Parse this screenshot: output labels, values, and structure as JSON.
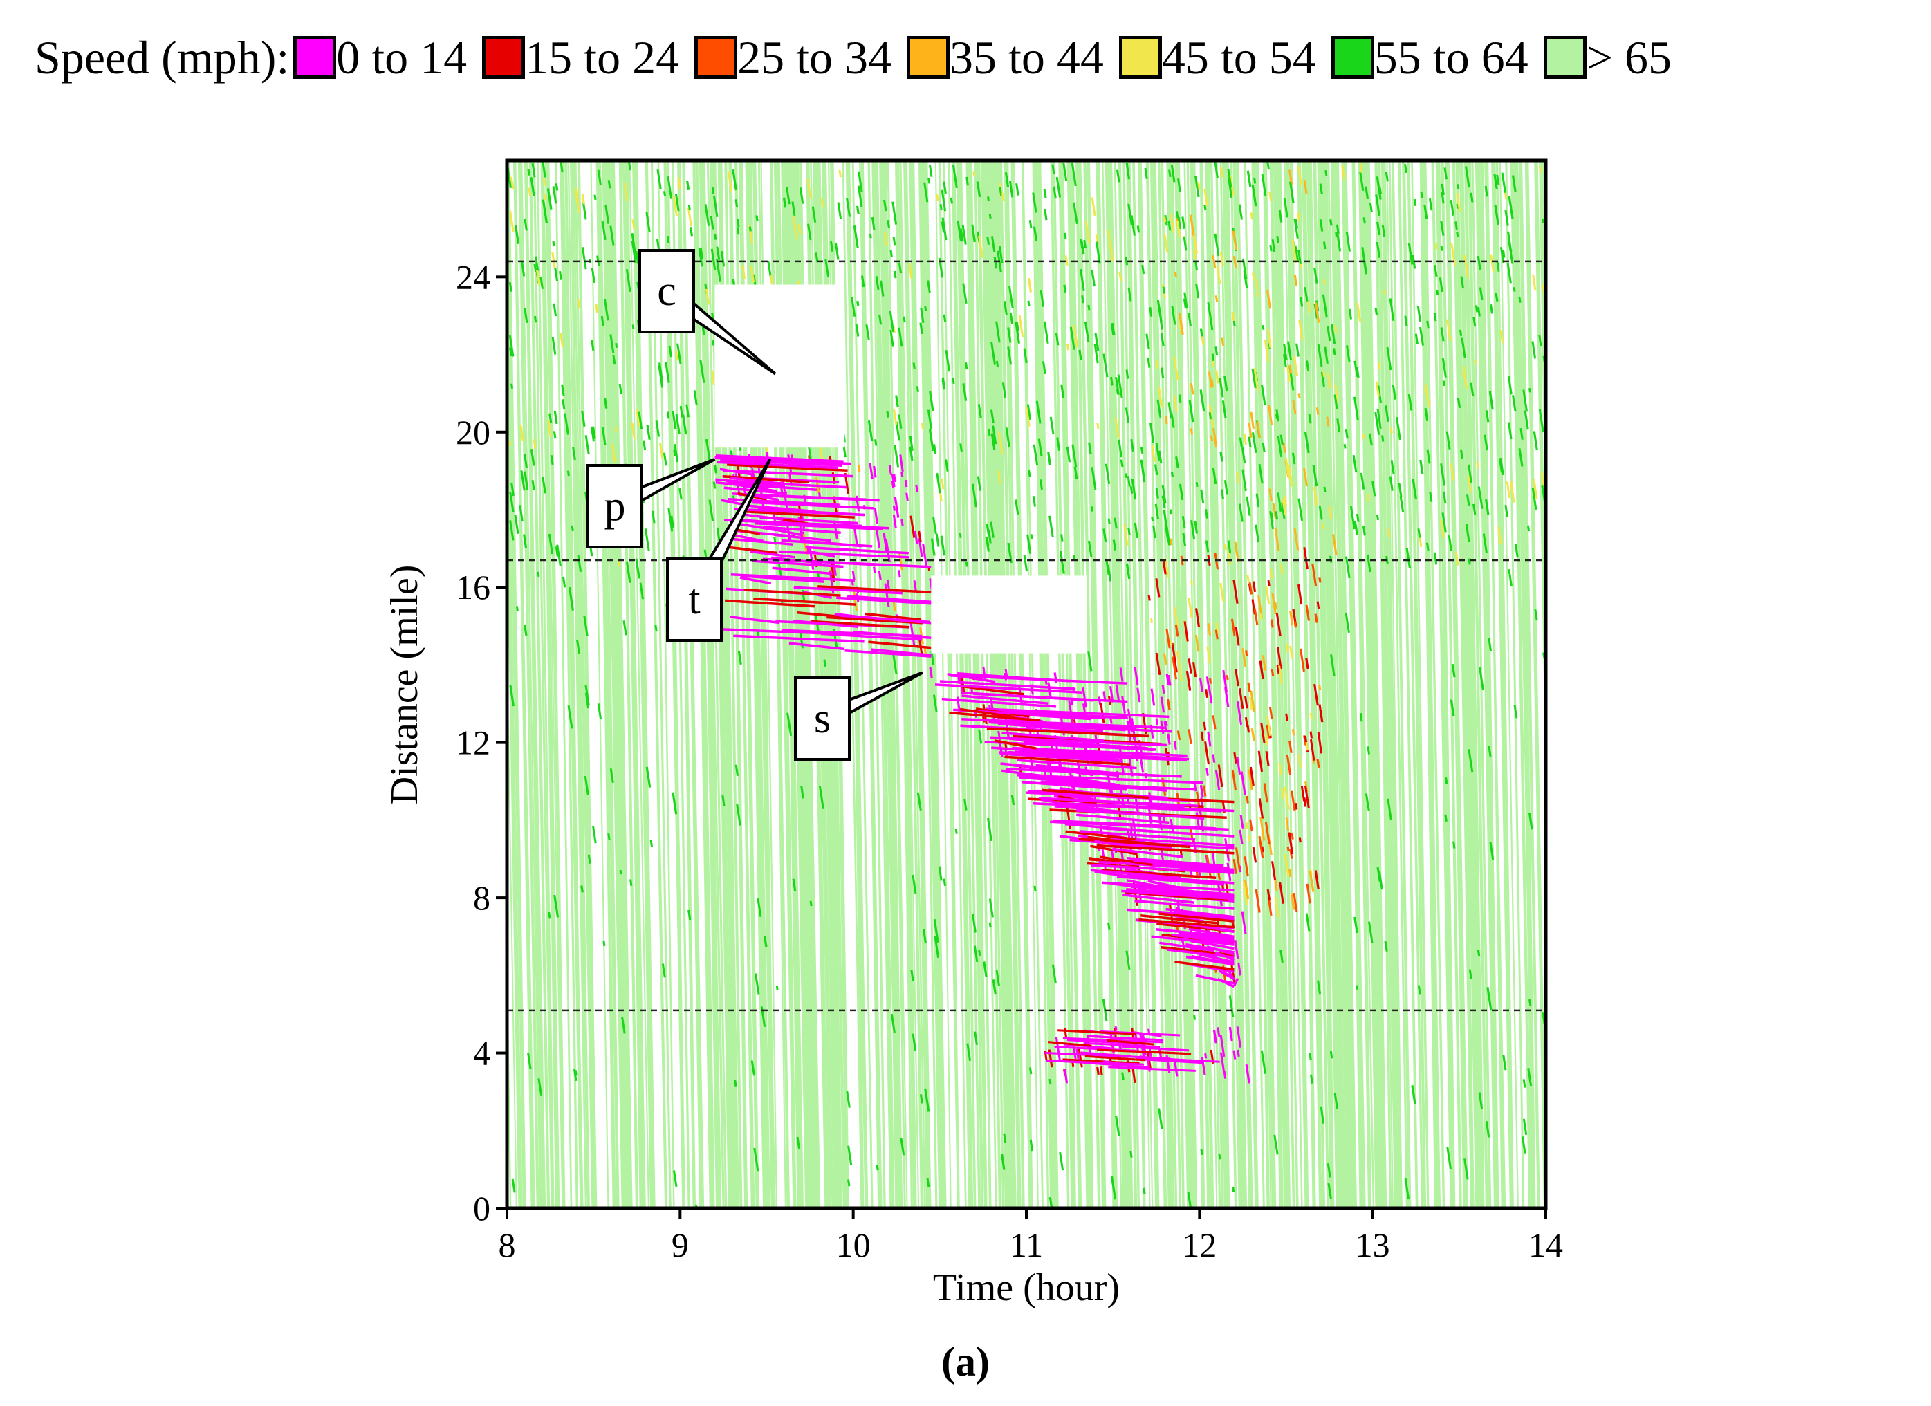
{
  "legend": {
    "title": "Speed (mph):",
    "items": [
      {
        "label": "0 to 14",
        "color": "#ff00ff"
      },
      {
        "label": "15 to 24",
        "color": "#e60000"
      },
      {
        "label": "25 to 34",
        "color": "#ff4d00"
      },
      {
        "label": "35 to 44",
        "color": "#ffb31a"
      },
      {
        "label": "45 to 54",
        "color": "#f2e64d"
      },
      {
        "label": "55 to 64",
        "color": "#1ad61a"
      },
      {
        "label": "> 65",
        "color": "#b3f2a0"
      }
    ]
  },
  "chart_data": {
    "type": "heatmap",
    "title": "",
    "xlabel": "Time (hour)",
    "ylabel": "Distance (mile)",
    "xlim": [
      8,
      14
    ],
    "ylim": [
      0,
      27
    ],
    "xticks": [
      8,
      9,
      10,
      11,
      12,
      13,
      14
    ],
    "yticks": [
      0,
      4,
      8,
      12,
      16,
      20,
      24
    ],
    "reference_lines_miles": [
      24.4,
      16.7,
      5.1
    ],
    "speed_bins": [
      "0 to 14",
      "15 to 24",
      "25 to 34",
      "35 to 44",
      "45 to 54",
      "55 to 64",
      "> 65"
    ],
    "annotations": [
      {
        "label": "c",
        "points_to": {
          "time": 9.55,
          "mile": 21.5
        }
      },
      {
        "label": "p",
        "points_to": {
          "time": 9.2,
          "mile": 19.3
        }
      },
      {
        "label": "t",
        "points_to": {
          "time": 9.52,
          "mile": 19.3
        }
      },
      {
        "label": "s",
        "points_to": {
          "time": 10.4,
          "mile": 13.8
        }
      }
    ],
    "congestion_regions": [
      {
        "speed": "0 to 14",
        "from_time": 9.2,
        "to_time": 10.4,
        "top_mile": 19.4,
        "bottom_mile": 14.2
      },
      {
        "speed": "0 to 14",
        "from_time": 10.4,
        "to_time": 12.2,
        "top_mile": 13.8,
        "bottom_mile": 5.8
      },
      {
        "speed": "15 to 24",
        "from_time": 11.6,
        "to_time": 12.6,
        "top_mile": 17.0,
        "bottom_mile": 8.0
      },
      {
        "speed": "0 to 14",
        "from_time": 11.1,
        "to_time": 12.3,
        "top_mile": 4.6,
        "bottom_mile": 3.5
      }
    ]
  },
  "caption": "(a)"
}
